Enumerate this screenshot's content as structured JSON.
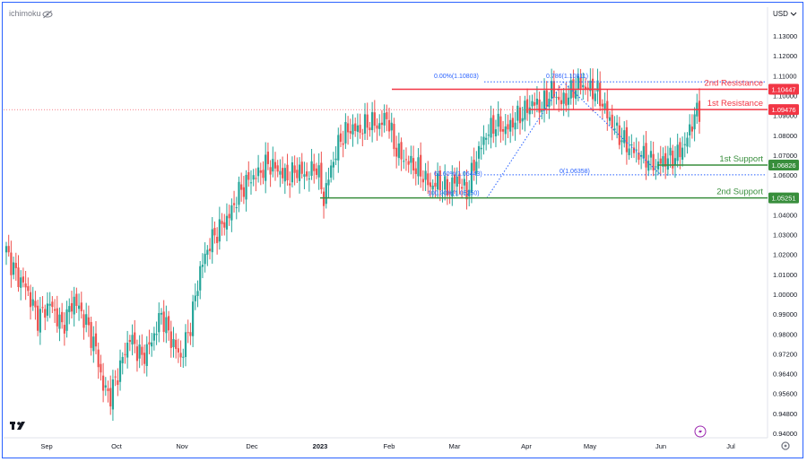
{
  "header": {
    "indicator_label": "ichimoku"
  },
  "currency": "USD",
  "colors": {
    "up": "#26a69a",
    "down": "#ef5350",
    "resistance": "#f23645",
    "support": "#388e3c",
    "fib": "#2962ff",
    "border": "#2a62ff"
  },
  "icons": {
    "indicator_toggle": "eye-slash-icon",
    "logo": "tradingview-logo",
    "lightning": "lightning-icon",
    "settings": "gear-icon"
  },
  "chart_data": {
    "type": "candlestick",
    "ylim": [
      0.938,
      1.142
    ],
    "y_ticks": [
      "1.13000",
      "1.12000",
      "1.11000",
      "1.10000",
      "1.09000",
      "1.08000",
      "1.07000",
      "1.06000",
      "1.05000",
      "1.04000",
      "1.03000",
      "1.02000",
      "1.01000",
      "1.00000",
      "0.99000",
      "0.98000",
      "0.97200",
      "0.96400",
      "0.95600",
      "0.94800",
      "0.94000"
    ],
    "x_ticks": [
      "Sep",
      "Oct",
      "Nov",
      "Dec",
      "2023",
      "Feb",
      "Mar",
      "Apr",
      "May",
      "Jun",
      "Jul"
    ],
    "levels": [
      {
        "name": "2nd Resistance",
        "value": 1.10447,
        "label": "1.10447",
        "kind": "resistance"
      },
      {
        "name": "1st Resistance",
        "value": 1.09476,
        "label": "1.09476",
        "kind": "resistance"
      },
      {
        "name": "1st Support",
        "value": 1.06826,
        "label": "1.06826",
        "kind": "support"
      },
      {
        "name": "2nd Support",
        "value": 1.05251,
        "label": "1.05251",
        "kind": "support"
      }
    ],
    "fib_left": {
      "top_label": "0.00%(1.10803)",
      "mid_label": "61.60%(1.06443)",
      "bottom_label": "100.00%(1.05250)"
    },
    "fib_right": {
      "top_label": "0.786(1.10811)",
      "bottom_label": "0(1.06358)"
    },
    "waypoints": [
      [
        0,
        1.027
      ],
      [
        4,
        1.016
      ],
      [
        8,
        1.01
      ],
      [
        13,
        0.995
      ],
      [
        18,
        1.002
      ],
      [
        23,
        0.991
      ],
      [
        28,
        1.004
      ],
      [
        33,
        0.993
      ],
      [
        37,
        0.98
      ],
      [
        40,
        0.962
      ],
      [
        43,
        0.958
      ],
      [
        47,
        0.972
      ],
      [
        51,
        0.986
      ],
      [
        56,
        0.976
      ],
      [
        60,
        0.984
      ],
      [
        64,
        0.997
      ],
      [
        68,
        0.985
      ],
      [
        72,
        0.976
      ],
      [
        76,
        0.992
      ],
      [
        80,
        1.018
      ],
      [
        84,
        1.031
      ],
      [
        88,
        1.038
      ],
      [
        92,
        1.044
      ],
      [
        96,
        1.055
      ],
      [
        100,
        1.061
      ],
      [
        104,
        1.064
      ],
      [
        108,
        1.069
      ],
      [
        112,
        1.066
      ],
      [
        116,
        1.062
      ],
      [
        120,
        1.066
      ],
      [
        124,
        1.063
      ],
      [
        128,
        1.068
      ],
      [
        131,
        1.052
      ],
      [
        134,
        1.067
      ],
      [
        138,
        1.081
      ],
      [
        142,
        1.086
      ],
      [
        146,
        1.085
      ],
      [
        150,
        1.089
      ],
      [
        154,
        1.087
      ],
      [
        157,
        1.092
      ],
      [
        160,
        1.078
      ],
      [
        163,
        1.072
      ],
      [
        167,
        1.069
      ],
      [
        171,
        1.065
      ],
      [
        175,
        1.058
      ],
      [
        178,
        1.06
      ],
      [
        182,
        1.056
      ],
      [
        186,
        1.062
      ],
      [
        190,
        1.055
      ],
      [
        194,
        1.072
      ],
      [
        198,
        1.083
      ],
      [
        202,
        1.088
      ],
      [
        206,
        1.085
      ],
      [
        210,
        1.09
      ],
      [
        214,
        1.094
      ],
      [
        217,
        1.098
      ],
      [
        221,
        1.096
      ],
      [
        225,
        1.104
      ],
      [
        229,
        1.098
      ],
      [
        233,
        1.103
      ],
      [
        236,
        1.107
      ],
      [
        240,
        1.105
      ],
      [
        244,
        1.103
      ],
      [
        248,
        1.092
      ],
      [
        252,
        1.084
      ],
      [
        256,
        1.078
      ],
      [
        260,
        1.074
      ],
      [
        264,
        1.072
      ],
      [
        268,
        1.068
      ],
      [
        272,
        1.071
      ],
      [
        276,
        1.072
      ],
      [
        280,
        1.078
      ],
      [
        284,
        1.092
      ],
      [
        286,
        1.094
      ]
    ]
  }
}
